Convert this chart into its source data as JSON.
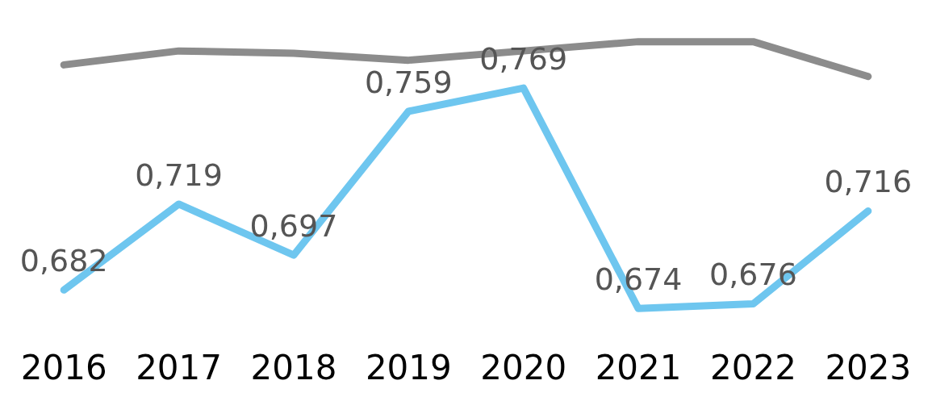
{
  "chart_data": {
    "type": "line",
    "categories": [
      "2016",
      "2017",
      "2018",
      "2019",
      "2020",
      "2021",
      "2022",
      "2023"
    ],
    "marker": "none",
    "line_style": "solid",
    "legend": false,
    "grid": false,
    "series": [
      {
        "color": "#8c8c8c",
        "values": [
          0.779,
          0.785,
          0.784,
          0.781,
          0.785,
          0.789,
          0.789,
          0.774
        ]
      },
      {
        "color": "#6ec6ef",
        "values": [
          0.682,
          0.719,
          0.697,
          0.759,
          0.769,
          0.674,
          0.676,
          0.716
        ],
        "value_labels": [
          "0,682",
          "0,719",
          "0,697",
          "0,759",
          "0,769",
          "0,674",
          "0,676",
          "0,716"
        ]
      }
    ]
  }
}
